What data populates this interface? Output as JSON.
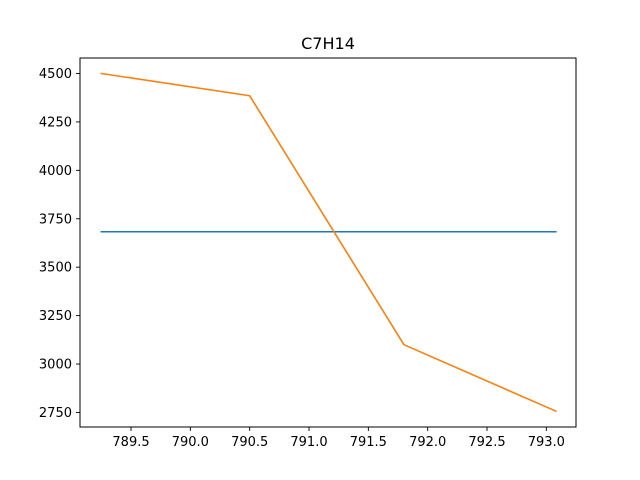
{
  "chart_data": {
    "type": "line",
    "title": "C7H14",
    "xlabel": "",
    "ylabel": "",
    "xlim": [
      789.07,
      793.25
    ],
    "ylim": [
      2675,
      4580
    ],
    "xticks": [
      789.5,
      790.0,
      790.5,
      791.0,
      791.5,
      792.0,
      792.5,
      793.0
    ],
    "xtick_labels": [
      "789.5",
      "790.0",
      "790.5",
      "791.0",
      "791.5",
      "792.0",
      "792.5",
      "793.0"
    ],
    "yticks": [
      2750,
      3000,
      3250,
      3500,
      3750,
      4000,
      4250,
      4500
    ],
    "ytick_labels": [
      "2750",
      "3000",
      "3250",
      "3500",
      "3750",
      "4000",
      "4250",
      "4500"
    ],
    "grid": false,
    "series": [
      {
        "color": "#1f77b4",
        "x": [
          789.25,
          793.08
        ],
        "y": [
          3683,
          3683
        ]
      },
      {
        "color": "#ff7f0e",
        "x": [
          789.25,
          790.5,
          791.8,
          793.08
        ],
        "y": [
          4500,
          4385,
          3100,
          2757
        ]
      }
    ]
  }
}
